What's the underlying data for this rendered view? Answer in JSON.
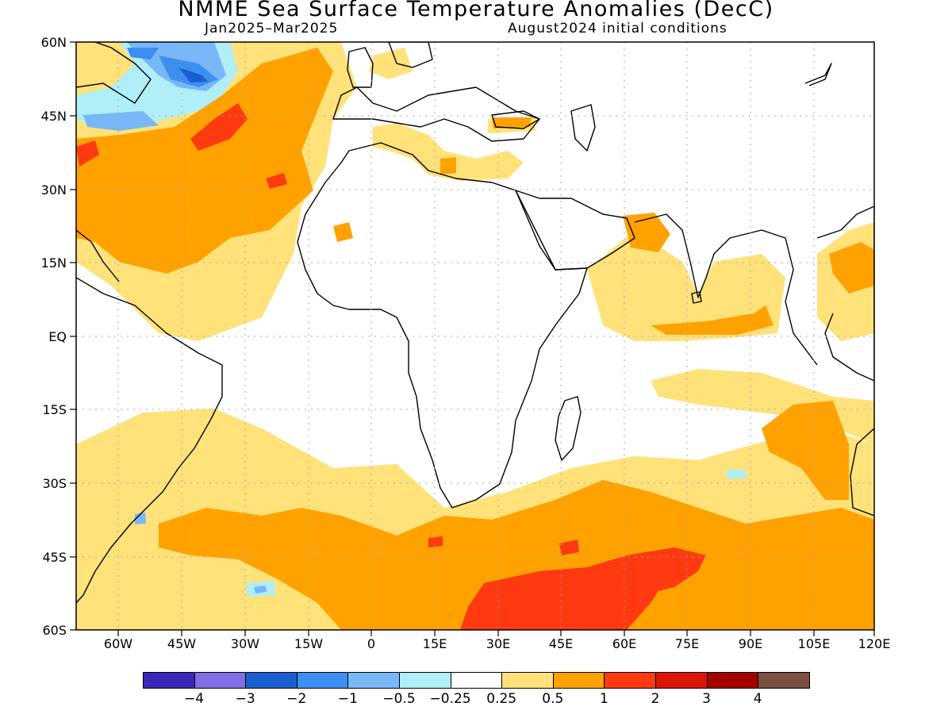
{
  "title": "NMME Sea Surface Temperature Anomalies (DecC)",
  "subtitle_left": "Jan2025–Mar2025",
  "subtitle_right": "August2024 initial conditions",
  "lat_labels": [
    "60N",
    "45N",
    "30N",
    "15N",
    "EQ",
    "15S",
    "30S",
    "45S",
    "60S"
  ],
  "lon_labels": [
    "60W",
    "45W",
    "30W",
    "15W",
    "0",
    "15E",
    "30E",
    "45E",
    "60E",
    "75E",
    "90E",
    "105E",
    "120E"
  ],
  "colorbar": {
    "bins": [
      {
        "color": "#3a28b8"
      },
      {
        "color": "#7f6fe6"
      },
      {
        "color": "#1b5ed0"
      },
      {
        "color": "#3c8ff0"
      },
      {
        "color": "#78b8f8"
      },
      {
        "color": "#b0eef8"
      },
      {
        "color": "#ffffff"
      },
      {
        "color": "#ffe27a"
      },
      {
        "color": "#ffa200"
      },
      {
        "color": "#ff3a10"
      },
      {
        "color": "#dc1408"
      },
      {
        "color": "#a40000"
      },
      {
        "color": "#7b5040"
      }
    ],
    "labels": [
      "−4",
      "−3",
      "−2",
      "−1",
      "−0.5",
      "−0.25",
      "0.25",
      "0.5",
      "1",
      "2",
      "3",
      "4"
    ]
  },
  "colors": {
    "weak_warm": "#ffe27a",
    "moderate_warm": "#ffa200",
    "strong_warm": "#ff3a10",
    "weak_cool": "#b0eef8",
    "cool": "#78b8f8",
    "cold": "#3c8ff0",
    "very_cold": "#1b5ed0",
    "land_outline": "#000000",
    "grid": "#aaaaaa"
  }
}
